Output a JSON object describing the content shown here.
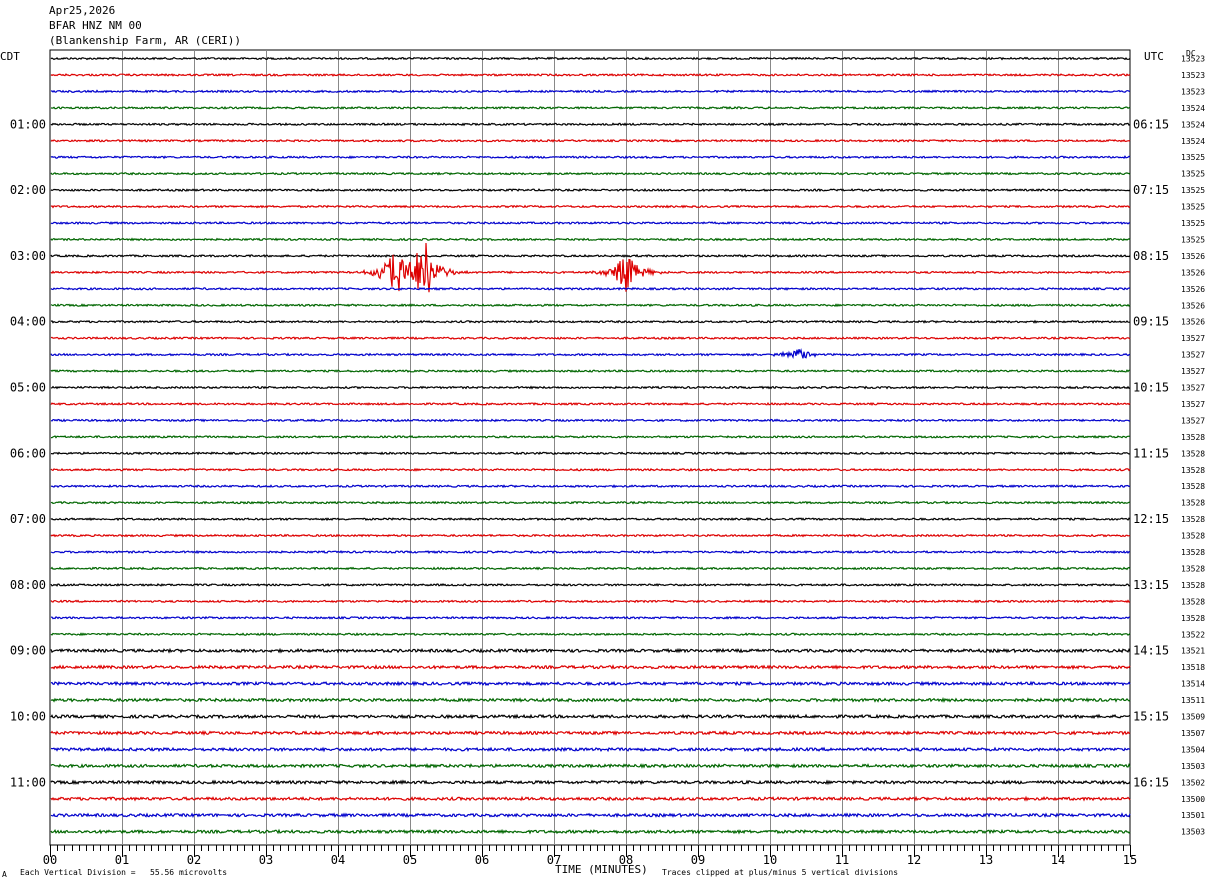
{
  "header": {
    "date": "Apr25,2026",
    "station": "BFAR HNZ NM 00",
    "location": "(Blankenship Farm, AR (CERI))"
  },
  "left_tz": "CDT",
  "right_tz": "UTC",
  "right_corner": "DC",
  "left_time_labels": [
    "01:00",
    "02:00",
    "03:00",
    "04:00",
    "05:00",
    "06:00",
    "07:00",
    "08:00",
    "09:00",
    "10:00",
    "11:00"
  ],
  "right_time_labels": [
    "06:15",
    "07:15",
    "08:15",
    "09:15",
    "10:15",
    "11:15",
    "12:15",
    "13:15",
    "14:15",
    "15:15",
    "16:15"
  ],
  "footer": {
    "scale": "Each Vertical Division =   55.56 microvolts",
    "xlabel": "TIME (MINUTES)",
    "clip": "Traces clipped at plus/minus 5 vertical divisions",
    "corner_mark": "A"
  },
  "chart_data": {
    "type": "line",
    "title": "",
    "xlabel": "TIME (MINUTES)",
    "ylabel": "",
    "x_ticks": [
      "00",
      "01",
      "02",
      "03",
      "04",
      "05",
      "06",
      "07",
      "08",
      "09",
      "10",
      "11",
      "12",
      "13",
      "14",
      "15"
    ],
    "xlim": [
      0,
      15
    ],
    "trace_colors": [
      "#000000",
      "#dd0000",
      "#0000cc",
      "#006600"
    ],
    "dc_offsets": [
      13523,
      13523,
      13523,
      13524,
      13524,
      13524,
      13525,
      13525,
      13525,
      13525,
      13525,
      13525,
      13526,
      13526,
      13526,
      13526,
      13526,
      13527,
      13527,
      13527,
      13527,
      13527,
      13527,
      13528,
      13528,
      13528,
      13528,
      13528,
      13528,
      13528,
      13528,
      13528,
      13528,
      13528,
      13528,
      13522,
      13521,
      13518,
      13514,
      13511,
      13509,
      13507,
      13504,
      13503,
      13502,
      13500,
      13501,
      13503
    ],
    "events": [
      {
        "trace": 13,
        "minute": 4.85,
        "amplitude": 5
      },
      {
        "trace": 13,
        "minute": 5.2,
        "amplitude": 5
      },
      {
        "trace": 13,
        "minute": 8.0,
        "amplitude": 3
      },
      {
        "trace": 18,
        "minute": 10.4,
        "amplitude": 1
      }
    ]
  }
}
